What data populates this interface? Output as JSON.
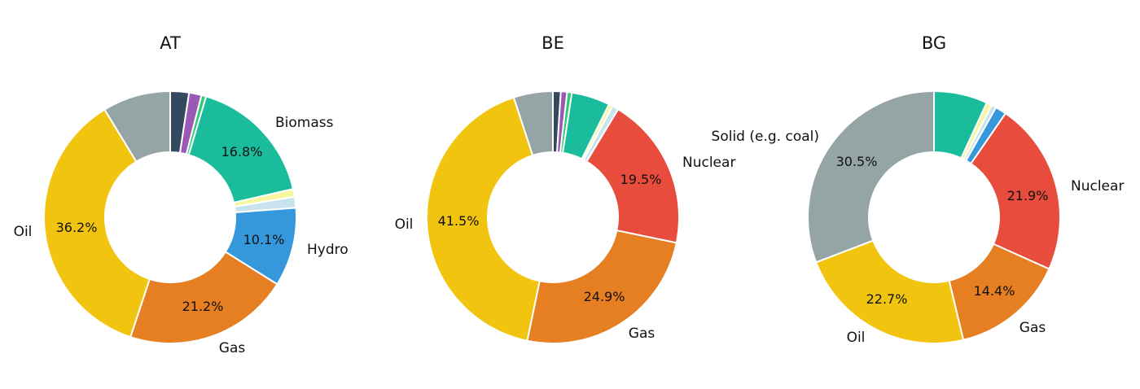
{
  "colors": {
    "Solid (e.g. coal)": "#95a5a6",
    "Dark": "#34495e",
    "Purple": "#9b59b6",
    "Green": "#2ecc71",
    "Biomass": "#1abc9c",
    "Yellow": "#f7f7a0",
    "LightBlue": "#c7e3ee",
    "Hydro": "#3498db",
    "Nuclear": "#e74c3c",
    "Gas": "#e67e22",
    "Oil": "#f1c40f"
  },
  "chart_data": [
    {
      "type": "pie",
      "title": "AT",
      "slices": [
        {
          "key": "Dark",
          "value": 2.4,
          "label": "",
          "pct_label": ""
        },
        {
          "key": "Purple",
          "value": 1.6,
          "label": "",
          "pct_label": ""
        },
        {
          "key": "Green",
          "value": 0.6,
          "label": "",
          "pct_label": ""
        },
        {
          "key": "Biomass",
          "value": 16.8,
          "label": "Biomass",
          "pct_label": "16.8%"
        },
        {
          "key": "Yellow",
          "value": 1.0,
          "label": "",
          "pct_label": ""
        },
        {
          "key": "LightBlue",
          "value": 1.4,
          "label": "",
          "pct_label": ""
        },
        {
          "key": "Hydro",
          "value": 10.1,
          "label": "Hydro",
          "pct_label": "10.1%"
        },
        {
          "key": "Gas",
          "value": 21.2,
          "label": "Gas",
          "pct_label": "21.2%"
        },
        {
          "key": "Oil",
          "value": 36.2,
          "label": "Oil",
          "pct_label": "36.2%"
        },
        {
          "key": "Solid (e.g. coal)",
          "value": 8.7,
          "label": "",
          "pct_label": ""
        }
      ]
    },
    {
      "type": "pie",
      "title": "BE",
      "slices": [
        {
          "key": "Dark",
          "value": 1.0,
          "label": "",
          "pct_label": ""
        },
        {
          "key": "Purple",
          "value": 0.8,
          "label": "",
          "pct_label": ""
        },
        {
          "key": "Green",
          "value": 0.6,
          "label": "",
          "pct_label": ""
        },
        {
          "key": "Biomass",
          "value": 4.9,
          "label": "",
          "pct_label": ""
        },
        {
          "key": "Yellow",
          "value": 0.5,
          "label": "",
          "pct_label": ""
        },
        {
          "key": "LightBlue",
          "value": 0.8,
          "label": "",
          "pct_label": ""
        },
        {
          "key": "Nuclear",
          "value": 19.5,
          "label": "Nuclear",
          "pct_label": "19.5%"
        },
        {
          "key": "Gas",
          "value": 24.9,
          "label": "Gas",
          "pct_label": "24.9%"
        },
        {
          "key": "Oil",
          "value": 41.5,
          "label": "Oil",
          "pct_label": "41.5%"
        },
        {
          "key": "Solid (e.g. coal)",
          "value": 5.0,
          "label": "",
          "pct_label": ""
        }
      ]
    },
    {
      "type": "pie",
      "title": "BG",
      "slices": [
        {
          "key": "Biomass",
          "value": 6.8,
          "label": "",
          "pct_label": ""
        },
        {
          "key": "Yellow",
          "value": 0.7,
          "label": "",
          "pct_label": ""
        },
        {
          "key": "LightBlue",
          "value": 0.6,
          "label": "",
          "pct_label": ""
        },
        {
          "key": "Hydro",
          "value": 1.4,
          "label": "",
          "pct_label": ""
        },
        {
          "key": "Nuclear",
          "value": 21.9,
          "label": "Nuclear",
          "pct_label": "21.9%"
        },
        {
          "key": "Gas",
          "value": 14.4,
          "label": "Gas",
          "pct_label": "14.4%"
        },
        {
          "key": "Oil",
          "value": 22.7,
          "label": "Oil",
          "pct_label": "22.7%"
        },
        {
          "key": "Solid (e.g. coal)",
          "value": 30.5,
          "label": "Solid (e.g. coal)",
          "pct_label": "30.5%"
        }
      ]
    }
  ]
}
